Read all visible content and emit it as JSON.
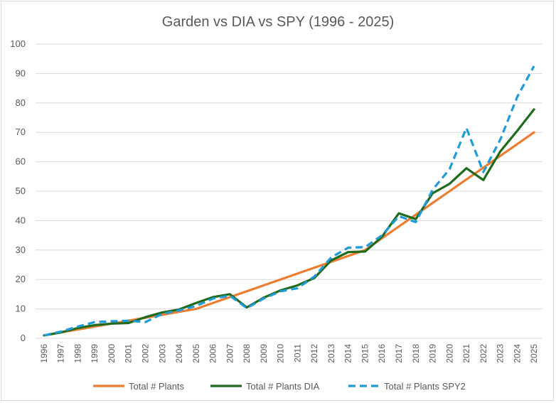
{
  "chart_data": {
    "type": "line",
    "title": "Garden vs DIA vs SPY (1996 - 2025)",
    "xlabel": "",
    "ylabel": "",
    "ylim": [
      0,
      100
    ],
    "yticks": [
      0,
      10,
      20,
      30,
      40,
      50,
      60,
      70,
      80,
      90,
      100
    ],
    "grid": true,
    "legend_position": "bottom",
    "categories": [
      "1996",
      "1997",
      "1998",
      "1999",
      "2000",
      "2001",
      "2002",
      "2003",
      "2004",
      "2005",
      "2006",
      "2007",
      "2008",
      "2009",
      "2010",
      "2011",
      "2012",
      "2013",
      "2014",
      "2015",
      "2016",
      "2017",
      "2018",
      "2019",
      "2020",
      "2021",
      "2022",
      "2023",
      "2024",
      "2025"
    ],
    "series": [
      {
        "name": "Total # Plants",
        "color": "#ED7D31",
        "dash": "solid",
        "values": [
          1,
          2,
          3,
          4,
          5,
          6,
          7,
          8,
          9,
          10,
          12,
          14,
          16,
          18,
          20,
          22,
          24,
          26,
          28,
          30,
          34,
          38,
          42,
          46,
          50,
          54,
          58,
          62,
          66,
          70
        ]
      },
      {
        "name": "Total # Plants DIA",
        "color": "#1E6B1E",
        "dash": "solid",
        "values": [
          1,
          2,
          3.5,
          4.5,
          5,
          5.2,
          7.2,
          8.8,
          9.8,
          12,
          14,
          15,
          10.5,
          13.8,
          16.3,
          18,
          20.5,
          26.5,
          29.3,
          29.5,
          34.5,
          42.5,
          40.5,
          49.3,
          52.5,
          57.8,
          53.8,
          63.5,
          70.5,
          77.8
        ]
      },
      {
        "name": "Total # Plants SPY2",
        "color": "#1F9BD7",
        "dash": "dashed",
        "values": [
          1,
          2.3,
          4,
          5.5,
          5.8,
          6,
          5.5,
          8.3,
          9.5,
          11,
          13.5,
          14.5,
          10.3,
          13.5,
          16,
          17,
          21,
          27.5,
          30.8,
          31,
          35,
          41.5,
          39.5,
          50.5,
          57.5,
          71.5,
          56.5,
          67.5,
          82,
          92.5
        ]
      }
    ]
  }
}
